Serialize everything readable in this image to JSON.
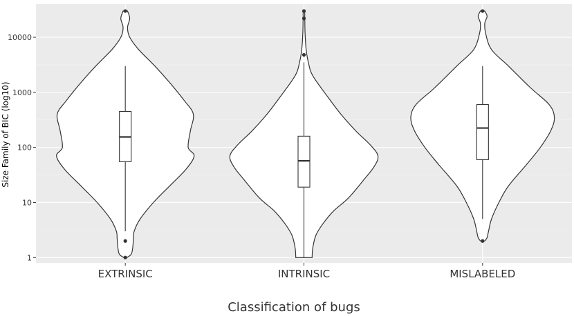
{
  "chart_data": {
    "type": "violin",
    "title": "",
    "xlabel": "Classification of bugs",
    "ylabel": "Size Family of BIC (log10)",
    "y_scale": "log10",
    "ylim": [
      0.8,
      40000
    ],
    "y_ticks": [
      1,
      10,
      100,
      1000,
      10000
    ],
    "y_tick_labels": [
      "1",
      "10",
      "100",
      "1000",
      "10000"
    ],
    "grid": true,
    "legend": "none",
    "categories": [
      "EXTRINSIC",
      "INTRINSIC",
      "MISLABELED"
    ],
    "series": [
      {
        "box": {
          "whisker_low": 3,
          "q1": 55,
          "median": 155,
          "q3": 450,
          "whisker_high": 3000
        },
        "outliers": [
          2,
          1,
          30000
        ],
        "density": [
          {
            "y": 1,
            "w": 0.02
          },
          {
            "y": 1.15,
            "w": 0.08
          },
          {
            "y": 1.5,
            "w": 0.1
          },
          {
            "y": 2.2,
            "w": 0.11
          },
          {
            "y": 3,
            "w": 0.12
          },
          {
            "y": 5,
            "w": 0.2
          },
          {
            "y": 10,
            "w": 0.38
          },
          {
            "y": 20,
            "w": 0.6
          },
          {
            "y": 40,
            "w": 0.82
          },
          {
            "y": 70,
            "w": 0.93
          },
          {
            "y": 100,
            "w": 0.85
          },
          {
            "y": 200,
            "w": 0.88
          },
          {
            "y": 400,
            "w": 0.92
          },
          {
            "y": 700,
            "w": 0.8
          },
          {
            "y": 1500,
            "w": 0.6
          },
          {
            "y": 3000,
            "w": 0.4
          },
          {
            "y": 6000,
            "w": 0.18
          },
          {
            "y": 10000,
            "w": 0.06
          },
          {
            "y": 15000,
            "w": 0.03
          },
          {
            "y": 22000,
            "w": 0.06
          },
          {
            "y": 30000,
            "w": 0.03
          }
        ]
      },
      {
        "box": {
          "whisker_low": 1,
          "q1": 19,
          "median": 57,
          "q3": 160,
          "whisker_high": 3500
        },
        "outliers": [
          4800,
          22000,
          30000
        ],
        "density": [
          {
            "y": 1,
            "w": 0.11
          },
          {
            "y": 1.5,
            "w": 0.12
          },
          {
            "y": 2.5,
            "w": 0.16
          },
          {
            "y": 4,
            "w": 0.25
          },
          {
            "y": 7,
            "w": 0.4
          },
          {
            "y": 12,
            "w": 0.6
          },
          {
            "y": 25,
            "w": 0.8
          },
          {
            "y": 45,
            "w": 0.95
          },
          {
            "y": 70,
            "w": 1.0
          },
          {
            "y": 110,
            "w": 0.9
          },
          {
            "y": 200,
            "w": 0.7
          },
          {
            "y": 400,
            "w": 0.5
          },
          {
            "y": 800,
            "w": 0.33
          },
          {
            "y": 2000,
            "w": 0.12
          },
          {
            "y": 3500,
            "w": 0.06
          },
          {
            "y": 6000,
            "w": 0.03
          },
          {
            "y": 12000,
            "w": 0.015
          },
          {
            "y": 30000,
            "w": 0.01
          }
        ]
      },
      {
        "box": {
          "whisker_low": 5,
          "q1": 60,
          "median": 225,
          "q3": 600,
          "whisker_high": 3000
        },
        "outliers": [
          2,
          30000
        ],
        "density": [
          {
            "y": 2,
            "w": 0.03
          },
          {
            "y": 2.3,
            "w": 0.06
          },
          {
            "y": 3,
            "w": 0.08
          },
          {
            "y": 5,
            "w": 0.12
          },
          {
            "y": 10,
            "w": 0.22
          },
          {
            "y": 20,
            "w": 0.35
          },
          {
            "y": 50,
            "w": 0.6
          },
          {
            "y": 100,
            "w": 0.78
          },
          {
            "y": 200,
            "w": 0.92
          },
          {
            "y": 350,
            "w": 0.97
          },
          {
            "y": 600,
            "w": 0.9
          },
          {
            "y": 1200,
            "w": 0.65
          },
          {
            "y": 3000,
            "w": 0.35
          },
          {
            "y": 6000,
            "w": 0.12
          },
          {
            "y": 12000,
            "w": 0.04
          },
          {
            "y": 18000,
            "w": 0.03
          },
          {
            "y": 24000,
            "w": 0.06
          },
          {
            "y": 30000,
            "w": 0.03
          }
        ]
      }
    ]
  }
}
